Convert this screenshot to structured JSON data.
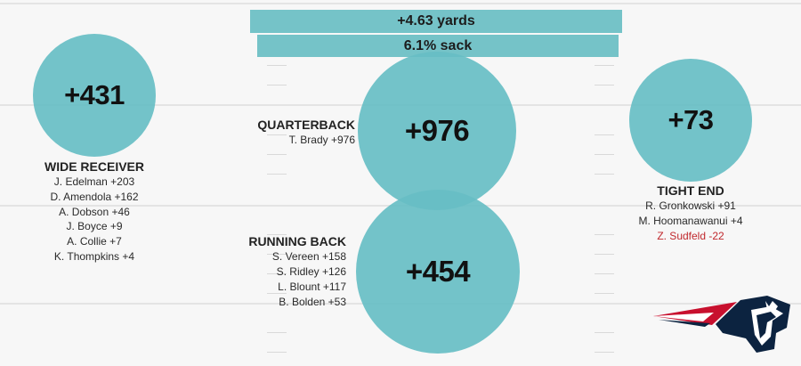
{
  "header": {
    "yards_label": "+4.63 yards",
    "sack_label": "6.1% sack"
  },
  "chart_data": {
    "type": "bubble",
    "title": "",
    "groups": [
      {
        "position": "WIDE RECEIVER",
        "total": "+431",
        "total_value": 431,
        "players": [
          {
            "label": "J. Edelman +203",
            "value": 203
          },
          {
            "label": "D. Amendola +162",
            "value": 162
          },
          {
            "label": "A. Dobson +46",
            "value": 46
          },
          {
            "label": "J. Boyce +9",
            "value": 9
          },
          {
            "label": "A. Collie +7",
            "value": 7
          },
          {
            "label": "K. Thompkins +4",
            "value": 4
          }
        ]
      },
      {
        "position": "QUARTERBACK",
        "total": "+976",
        "total_value": 976,
        "players": [
          {
            "label": "T. Brady +976",
            "value": 976
          }
        ]
      },
      {
        "position": "RUNNING BACK",
        "total": "+454",
        "total_value": 454,
        "players": [
          {
            "label": "S. Vereen +158",
            "value": 158
          },
          {
            "label": "S. Ridley +126",
            "value": 126
          },
          {
            "label": "L. Blount +117",
            "value": 117
          },
          {
            "label": "B. Bolden +53",
            "value": 53
          }
        ]
      },
      {
        "position": "TIGHT END",
        "total": "+73",
        "total_value": 73,
        "players": [
          {
            "label": "R. Gronkowski +91",
            "value": 91
          },
          {
            "label": "M. Hoomanawanui +4",
            "value": 4
          },
          {
            "label": "Z. Sudfeld -22",
            "value": -22
          }
        ]
      }
    ]
  },
  "colors": {
    "bubble": "#67bec4",
    "bar": "#75c3c8",
    "negative": "#c0282d",
    "logo_navy": "#0c2340",
    "logo_red": "#c8102e"
  },
  "icons": {
    "logo": "team-logo-icon"
  }
}
